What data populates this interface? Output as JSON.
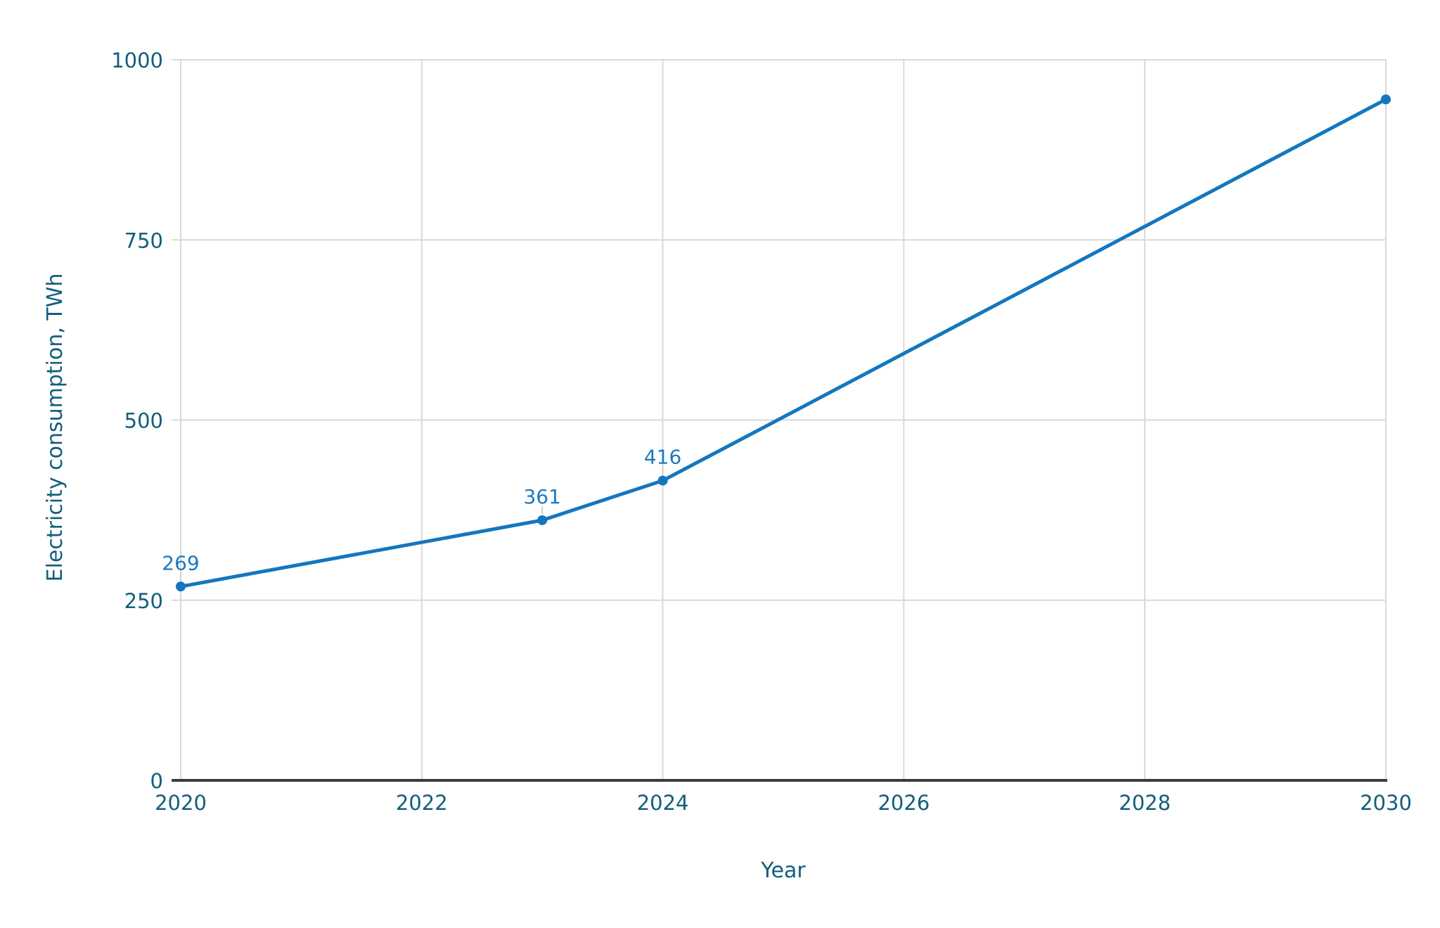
{
  "chart_data": {
    "type": "line",
    "title": "",
    "xlabel": "Year",
    "ylabel": "Electricity consumption, TWh",
    "x": [
      2020,
      2023,
      2024,
      2030
    ],
    "series": [
      {
        "name": "Electricity consumption",
        "values": [
          269,
          361,
          416,
          945
        ]
      }
    ],
    "point_labels": [
      "269",
      "361",
      "416",
      ""
    ],
    "xlim": [
      2020,
      2030
    ],
    "ylim": [
      0,
      1000
    ],
    "x_ticks": [
      "2020",
      "2022",
      "2024",
      "2026",
      "2028",
      "2030"
    ],
    "x_tick_values": [
      2020,
      2022,
      2024,
      2026,
      2028,
      2030
    ],
    "y_ticks": [
      "0",
      "250",
      "500",
      "750",
      "1000"
    ],
    "y_tick_values": [
      0,
      250,
      500,
      750,
      1000
    ],
    "grid": true,
    "legend": false,
    "colors": {
      "line": "#1377be",
      "marker": "#1377be",
      "data_label": "#1a7ac2",
      "axis_text": "#135e7c",
      "grid": "#d9d9d9",
      "leader": "#cfcfcf",
      "axis_line": "#3c3c3c",
      "background": "#ffffff"
    }
  }
}
